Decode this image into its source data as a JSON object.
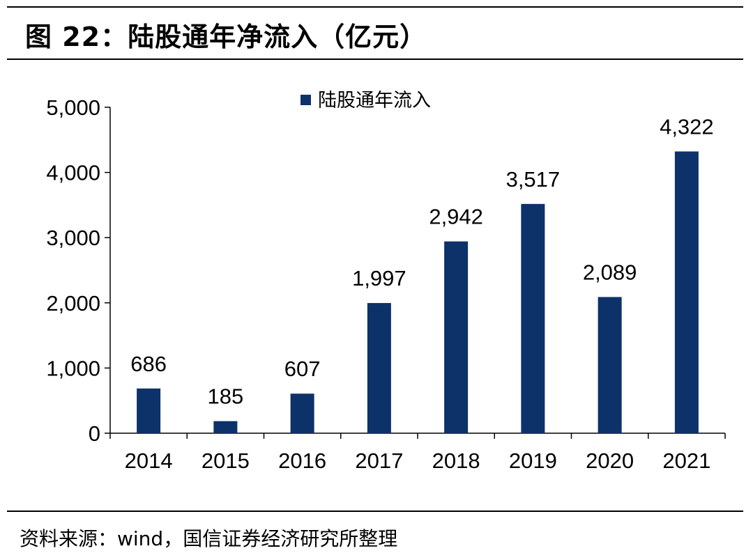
{
  "figure": {
    "title": "图 22：陆股通年净流入（亿元）",
    "source": "资料来源：wind，国信证券经济研究所整理"
  },
  "chart_data": {
    "type": "bar",
    "categories": [
      "2014",
      "2015",
      "2016",
      "2017",
      "2018",
      "2019",
      "2020",
      "2021"
    ],
    "series": [
      {
        "name": "陆股通年流入",
        "values": [
          686,
          185,
          607,
          1997,
          2942,
          3517,
          2089,
          4322
        ],
        "color": "#0D3169"
      }
    ],
    "data_labels": [
      "686",
      "185",
      "607",
      "1,997",
      "2,942",
      "3,517",
      "2,089",
      "4,322"
    ],
    "ylim": [
      0,
      5000
    ],
    "yticks": [
      0,
      1000,
      2000,
      3000,
      4000,
      5000
    ],
    "ytick_labels": [
      "0",
      "1,000",
      "2,000",
      "3,000",
      "4,000",
      "5,000"
    ],
    "grid": false,
    "legend_position": "top-center"
  }
}
